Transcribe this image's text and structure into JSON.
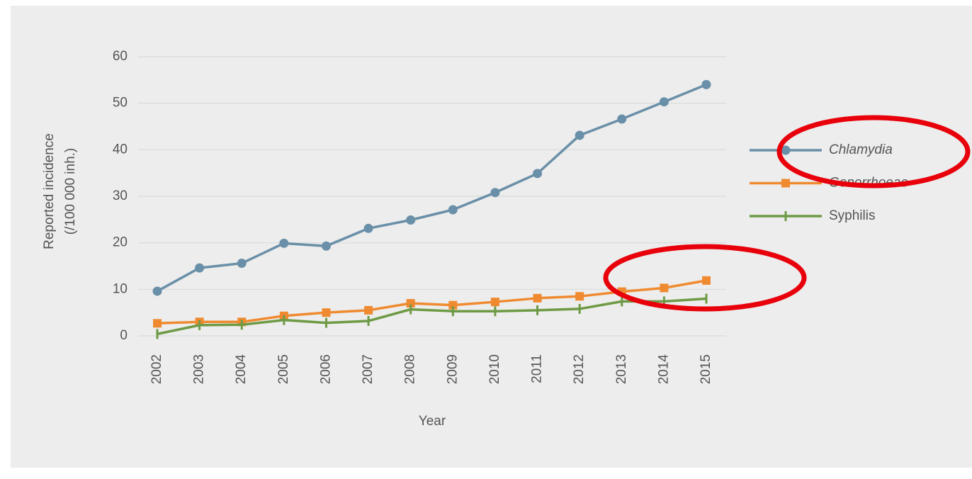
{
  "chart_data": {
    "type": "line",
    "categories": [
      "2002",
      "2003",
      "2004",
      "2005",
      "2006",
      "2007",
      "2008",
      "2009",
      "2010",
      "2011",
      "2012",
      "2013",
      "2014",
      "2015"
    ],
    "series": [
      {
        "name": "Chlamydia",
        "color": "#6a8fa8",
        "marker": "circle",
        "italic": true,
        "values": [
          9.6,
          14.6,
          15.6,
          19.9,
          19.3,
          23.1,
          24.9,
          27.1,
          30.8,
          34.9,
          43.1,
          46.6,
          50.3,
          54.0
        ]
      },
      {
        "name": "Gonorrhoeae",
        "color": "#f08a30",
        "marker": "square",
        "italic": true,
        "values": [
          2.7,
          3.0,
          3.0,
          4.3,
          5.0,
          5.5,
          7.0,
          6.6,
          7.3,
          8.1,
          8.5,
          9.5,
          10.3,
          11.9
        ]
      },
      {
        "name": "Syphilis",
        "color": "#6e9a45",
        "marker": "tick",
        "italic": false,
        "values": [
          0.4,
          2.3,
          2.4,
          3.4,
          2.8,
          3.2,
          5.7,
          5.3,
          5.3,
          5.5,
          5.8,
          7.4,
          7.4,
          8.0
        ]
      }
    ],
    "ylabel": [
      "Reported incidence",
      "(/100 000 inh.)"
    ],
    "xlabel": "Year",
    "ylim": [
      0,
      60
    ],
    "yticks": [
      0,
      10,
      20,
      30,
      40,
      50,
      60
    ],
    "grid": true,
    "legend": "right"
  }
}
